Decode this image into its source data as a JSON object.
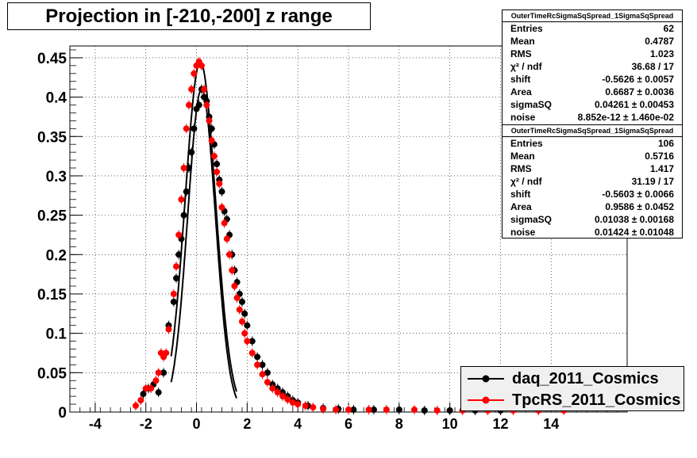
{
  "title": "Projection in [-210,-200] z range",
  "stats_boxes": [
    {
      "header": "OuterTimeRcSigmaSqSpread_1SigmaSqSpread",
      "rows": [
        {
          "label": "Entries",
          "value": "62"
        },
        {
          "label": "Mean",
          "value": "0.4787"
        },
        {
          "label": "RMS",
          "value": "1.023"
        },
        {
          "label": "χ² / ndf",
          "value": "36.68 / 17"
        },
        {
          "label": "shift",
          "value": "-0.5626 ± 0.0057"
        },
        {
          "label": "Area",
          "value": "0.6687 ± 0.0036"
        },
        {
          "label": "sigmaSQ",
          "value": "0.04261 ± 0.00453"
        },
        {
          "label": "noise",
          "value": "8.852e-12 ± 1.460e-02"
        }
      ]
    },
    {
      "header": "OuterTimeRcSigmaSqSpread_1SigmaSqSpread",
      "rows": [
        {
          "label": "Entries",
          "value": "106"
        },
        {
          "label": "Mean",
          "value": "0.5716"
        },
        {
          "label": "RMS",
          "value": "1.417"
        },
        {
          "label": "χ² / ndf",
          "value": "31.19 / 17"
        },
        {
          "label": "shift",
          "value": "-0.5603 ± 0.0066"
        },
        {
          "label": "Area",
          "value": "0.9586 ± 0.0452"
        },
        {
          "label": "sigmaSQ",
          "value": "0.01038 ± 0.00168"
        },
        {
          "label": "noise",
          "value": "0.01424 ± 0.01048"
        }
      ]
    }
  ],
  "legend": [
    {
      "label": "daq_2011_Cosmics",
      "color": "#000000"
    },
    {
      "label": "TpcRS_2011_Cosmics",
      "color": "#ff0000"
    }
  ],
  "chart_data": {
    "type": "scatter",
    "title": "Projection in [-210,-200] z range",
    "xlim": [
      -5,
      17
    ],
    "ylim": [
      0,
      0.465
    ],
    "x_ticks": [
      -4,
      -2,
      0,
      2,
      4,
      6,
      8,
      10,
      12,
      14
    ],
    "x_tick_labels": [
      "-4",
      "-2",
      "0",
      "2",
      "4",
      "6",
      "8",
      "10",
      "12",
      "14"
    ],
    "y_ticks": [
      0,
      0.05,
      0.1,
      0.15,
      0.2,
      0.25,
      0.3,
      0.35,
      0.4,
      0.45
    ],
    "y_tick_labels": [
      "0",
      "0.05",
      "0.1",
      "0.15",
      "0.2",
      "0.25",
      "0.3",
      "0.35",
      "0.4",
      "0.45"
    ],
    "grid": true,
    "legend_position": "bottom-right",
    "series": [
      {
        "name": "daq_2011_Cosmics",
        "color": "#000000",
        "points": [
          [
            -2.1,
            0.023
          ],
          [
            -1.9,
            0.03
          ],
          [
            -1.7,
            0.035
          ],
          [
            -1.5,
            0.025
          ],
          [
            -1.3,
            0.05
          ],
          [
            -1.1,
            0.11
          ],
          [
            -0.9,
            0.14
          ],
          [
            -0.8,
            0.17
          ],
          [
            -0.7,
            0.2
          ],
          [
            -0.6,
            0.22
          ],
          [
            -0.5,
            0.25
          ],
          [
            -0.4,
            0.28
          ],
          [
            -0.3,
            0.31
          ],
          [
            -0.2,
            0.33
          ],
          [
            -0.1,
            0.36
          ],
          [
            0.0,
            0.385
          ],
          [
            0.1,
            0.39
          ],
          [
            0.2,
            0.41
          ],
          [
            0.3,
            0.4
          ],
          [
            0.4,
            0.395
          ],
          [
            0.5,
            0.375
          ],
          [
            0.6,
            0.36
          ],
          [
            0.7,
            0.34
          ],
          [
            0.8,
            0.315
          ],
          [
            0.9,
            0.295
          ],
          [
            1.0,
            0.28
          ],
          [
            1.1,
            0.255
          ],
          [
            1.2,
            0.245
          ],
          [
            1.3,
            0.225
          ],
          [
            1.4,
            0.2
          ],
          [
            1.5,
            0.18
          ],
          [
            1.6,
            0.165
          ],
          [
            1.7,
            0.15
          ],
          [
            1.8,
            0.14
          ],
          [
            1.9,
            0.125
          ],
          [
            2.0,
            0.11
          ],
          [
            2.2,
            0.09
          ],
          [
            2.4,
            0.07
          ],
          [
            2.6,
            0.06
          ],
          [
            2.8,
            0.05
          ],
          [
            3.0,
            0.035
          ],
          [
            3.2,
            0.03
          ],
          [
            3.4,
            0.025
          ],
          [
            3.6,
            0.02
          ],
          [
            3.8,
            0.015
          ],
          [
            4.0,
            0.012
          ],
          [
            4.4,
            0.008
          ],
          [
            5.0,
            0.005
          ],
          [
            5.6,
            0.004
          ],
          [
            6.2,
            0.003
          ],
          [
            7.0,
            0.003
          ],
          [
            8.0,
            0.003
          ],
          [
            9.0,
            0.002
          ],
          [
            10.0,
            0.002
          ],
          [
            11.0,
            0.002
          ],
          [
            12.0,
            0.002
          ]
        ],
        "fit": {
          "peak_x": 0.2,
          "peak_y": 0.41,
          "sigma_left": 0.55,
          "sigma_right": 0.55
        }
      },
      {
        "name": "TpcRS_2011_Cosmics",
        "color": "#ff0000",
        "points": [
          [
            -2.4,
            0.008
          ],
          [
            -2.2,
            0.015
          ],
          [
            -2.0,
            0.03
          ],
          [
            -1.8,
            0.03
          ],
          [
            -1.6,
            0.04
          ],
          [
            -1.5,
            0.05
          ],
          [
            -1.4,
            0.075
          ],
          [
            -1.3,
            0.07
          ],
          [
            -1.2,
            0.075
          ],
          [
            -1.1,
            0.105
          ],
          [
            -0.9,
            0.15
          ],
          [
            -0.8,
            0.185
          ],
          [
            -0.7,
            0.225
          ],
          [
            -0.6,
            0.27
          ],
          [
            -0.5,
            0.31
          ],
          [
            -0.4,
            0.36
          ],
          [
            -0.3,
            0.39
          ],
          [
            -0.2,
            0.41
          ],
          [
            -0.1,
            0.43
          ],
          [
            0.0,
            0.44
          ],
          [
            0.1,
            0.445
          ],
          [
            0.2,
            0.44
          ],
          [
            0.3,
            0.41
          ],
          [
            0.4,
            0.39
          ],
          [
            0.5,
            0.37
          ],
          [
            0.6,
            0.345
          ],
          [
            0.7,
            0.325
          ],
          [
            0.8,
            0.305
          ],
          [
            0.9,
            0.29
          ],
          [
            1.0,
            0.26
          ],
          [
            1.1,
            0.24
          ],
          [
            1.2,
            0.22
          ],
          [
            1.3,
            0.2
          ],
          [
            1.4,
            0.18
          ],
          [
            1.5,
            0.16
          ],
          [
            1.6,
            0.145
          ],
          [
            1.7,
            0.13
          ],
          [
            1.8,
            0.115
          ],
          [
            1.9,
            0.1
          ],
          [
            2.0,
            0.09
          ],
          [
            2.2,
            0.075
          ],
          [
            2.4,
            0.06
          ],
          [
            2.6,
            0.048
          ],
          [
            2.8,
            0.038
          ],
          [
            3.0,
            0.03
          ],
          [
            3.2,
            0.025
          ],
          [
            3.4,
            0.02
          ],
          [
            3.6,
            0.016
          ],
          [
            3.8,
            0.012
          ],
          [
            4.0,
            0.01
          ],
          [
            4.3,
            0.008
          ],
          [
            4.6,
            0.006
          ],
          [
            5.0,
            0.004
          ],
          [
            5.5,
            0.003
          ],
          [
            6.0,
            0.003
          ],
          [
            6.8,
            0.003
          ],
          [
            7.5,
            0.003
          ],
          [
            8.6,
            0.003
          ],
          [
            9.5,
            0.002
          ],
          [
            10.5,
            0.002
          ],
          [
            11.5,
            0.002
          ],
          [
            12.5,
            0.002
          ],
          [
            13.5,
            0.002
          ],
          [
            14.5,
            0.002
          ]
        ],
        "fit": {
          "peak_x": 0.15,
          "peak_y": 0.445,
          "sigma_left": 0.6,
          "sigma_right": 0.6
        }
      }
    ]
  }
}
